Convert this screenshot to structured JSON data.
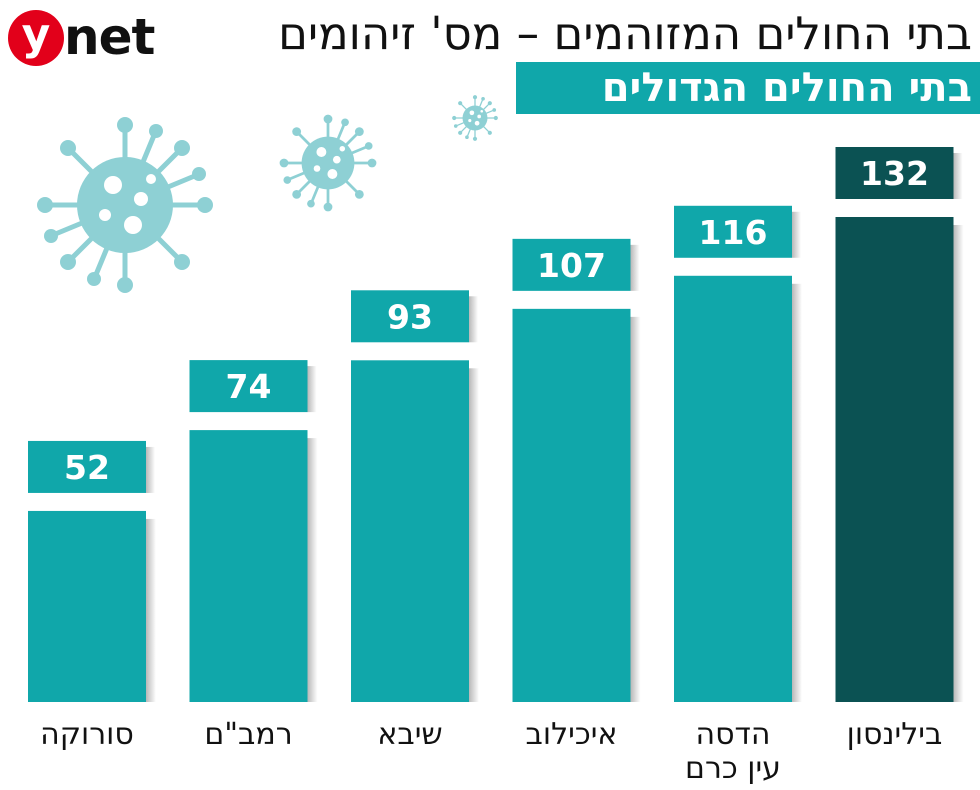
{
  "logo": {
    "mark": "y",
    "word": "net"
  },
  "title": "בתי החולים המזוהמים – מס' זיהומים",
  "subtitle": "בתי החולים הגדולים",
  "colors": {
    "bar": "#10a7aa",
    "highlight": "#0b5253",
    "label_box": "#10a7aa",
    "virus": "#8ed0d4",
    "logo": "#e2001a"
  },
  "decorations": [
    "virus-icon",
    "virus-icon",
    "virus-icon"
  ],
  "chart_data": {
    "type": "bar",
    "categories": [
      "סורוקה",
      "רמב\"ם",
      "שיבא",
      "איכילוב",
      "הדסה עין כרם",
      "בילינסון"
    ],
    "category_lines": [
      [
        "סורוקה"
      ],
      [
        "רמב\"ם"
      ],
      [
        "שיבא"
      ],
      [
        "איכילוב"
      ],
      [
        "הדסה",
        "עין כרם"
      ],
      [
        "בילינסון"
      ]
    ],
    "values": [
      52,
      74,
      93,
      107,
      116,
      132
    ],
    "value_labels": [
      "52",
      "74",
      "93",
      "107",
      "116",
      "132"
    ],
    "highlight_index": 5,
    "title": "בתי החולים המזוהמים – מס' זיהומים",
    "subtitle": "בתי החולים הגדולים",
    "xlabel": "",
    "ylabel": "",
    "ylim": [
      0,
      132
    ],
    "grid": false,
    "legend": "none"
  }
}
